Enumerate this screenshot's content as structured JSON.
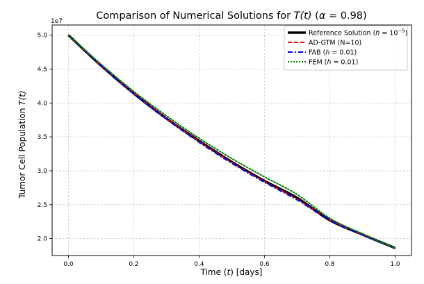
{
  "chart_data": {
    "type": "line",
    "title_prefix": "Comparison of Numerical Solutions for ",
    "title_var": "T(t)",
    "title_suffix_open": "(",
    "title_alpha_sym": "α",
    "title_alpha_val": " = 0.98)",
    "xlabel_prefix": "Time (",
    "xlabel_var": "t",
    "xlabel_suffix": ") [days]",
    "ylabel_prefix": "Tumor Cell Population ",
    "ylabel_var": "T(t)",
    "y_offset_label": "1e7",
    "xlim": [
      -0.05,
      1.05
    ],
    "ylim": [
      1.75,
      5.15
    ],
    "x_ticks": [
      0.0,
      0.2,
      0.4,
      0.6,
      0.8,
      1.0
    ],
    "x_tick_labels": [
      "0.0",
      "0.2",
      "0.4",
      "0.6",
      "0.8",
      "1.0"
    ],
    "y_ticks": [
      2.0,
      2.5,
      3.0,
      3.5,
      4.0,
      4.5,
      5.0
    ],
    "y_tick_labels": [
      "2.0",
      "2.5",
      "3.0",
      "3.5",
      "4.0",
      "4.5",
      "5.0"
    ],
    "grid": true,
    "legend_position": "top-right",
    "x": [
      0.0,
      0.1,
      0.2,
      0.3,
      0.4,
      0.5,
      0.6,
      0.7,
      0.8,
      0.9,
      1.0
    ],
    "series": [
      {
        "name": "Reference Solution",
        "legend_parts": [
          "Reference Solution (",
          "h",
          " = 10",
          "−5",
          ")"
        ],
        "color": "#000000",
        "style": "solid",
        "values": [
          5.0,
          4.55,
          4.14,
          3.77,
          3.44,
          3.13,
          2.85,
          2.6,
          2.27,
          2.06,
          1.86
        ]
      },
      {
        "name": "AD-GTM (N=10)",
        "legend_parts": [
          "AD-GTM (N=10)"
        ],
        "color": "#ff0000",
        "style": "dashed",
        "values": [
          5.0,
          4.55,
          4.14,
          3.77,
          3.43,
          3.12,
          2.84,
          2.58,
          2.27,
          2.06,
          1.86
        ]
      },
      {
        "name": "FAB (h = 0.01)",
        "legend_parts": [
          "FAB (",
          "h",
          " = 0.01)"
        ],
        "color": "#0000ff",
        "style": "dashdot",
        "values": [
          5.0,
          4.55,
          4.13,
          3.76,
          3.42,
          3.11,
          2.83,
          2.57,
          2.27,
          2.05,
          1.86
        ]
      },
      {
        "name": "FEM (h = 0.01)",
        "legend_parts": [
          "FEM (",
          "h",
          " = 0.01)"
        ],
        "color": "#008000",
        "style": "dotted",
        "values": [
          5.0,
          4.57,
          4.17,
          3.81,
          3.48,
          3.18,
          2.91,
          2.65,
          2.3,
          2.07,
          1.86
        ]
      }
    ]
  }
}
